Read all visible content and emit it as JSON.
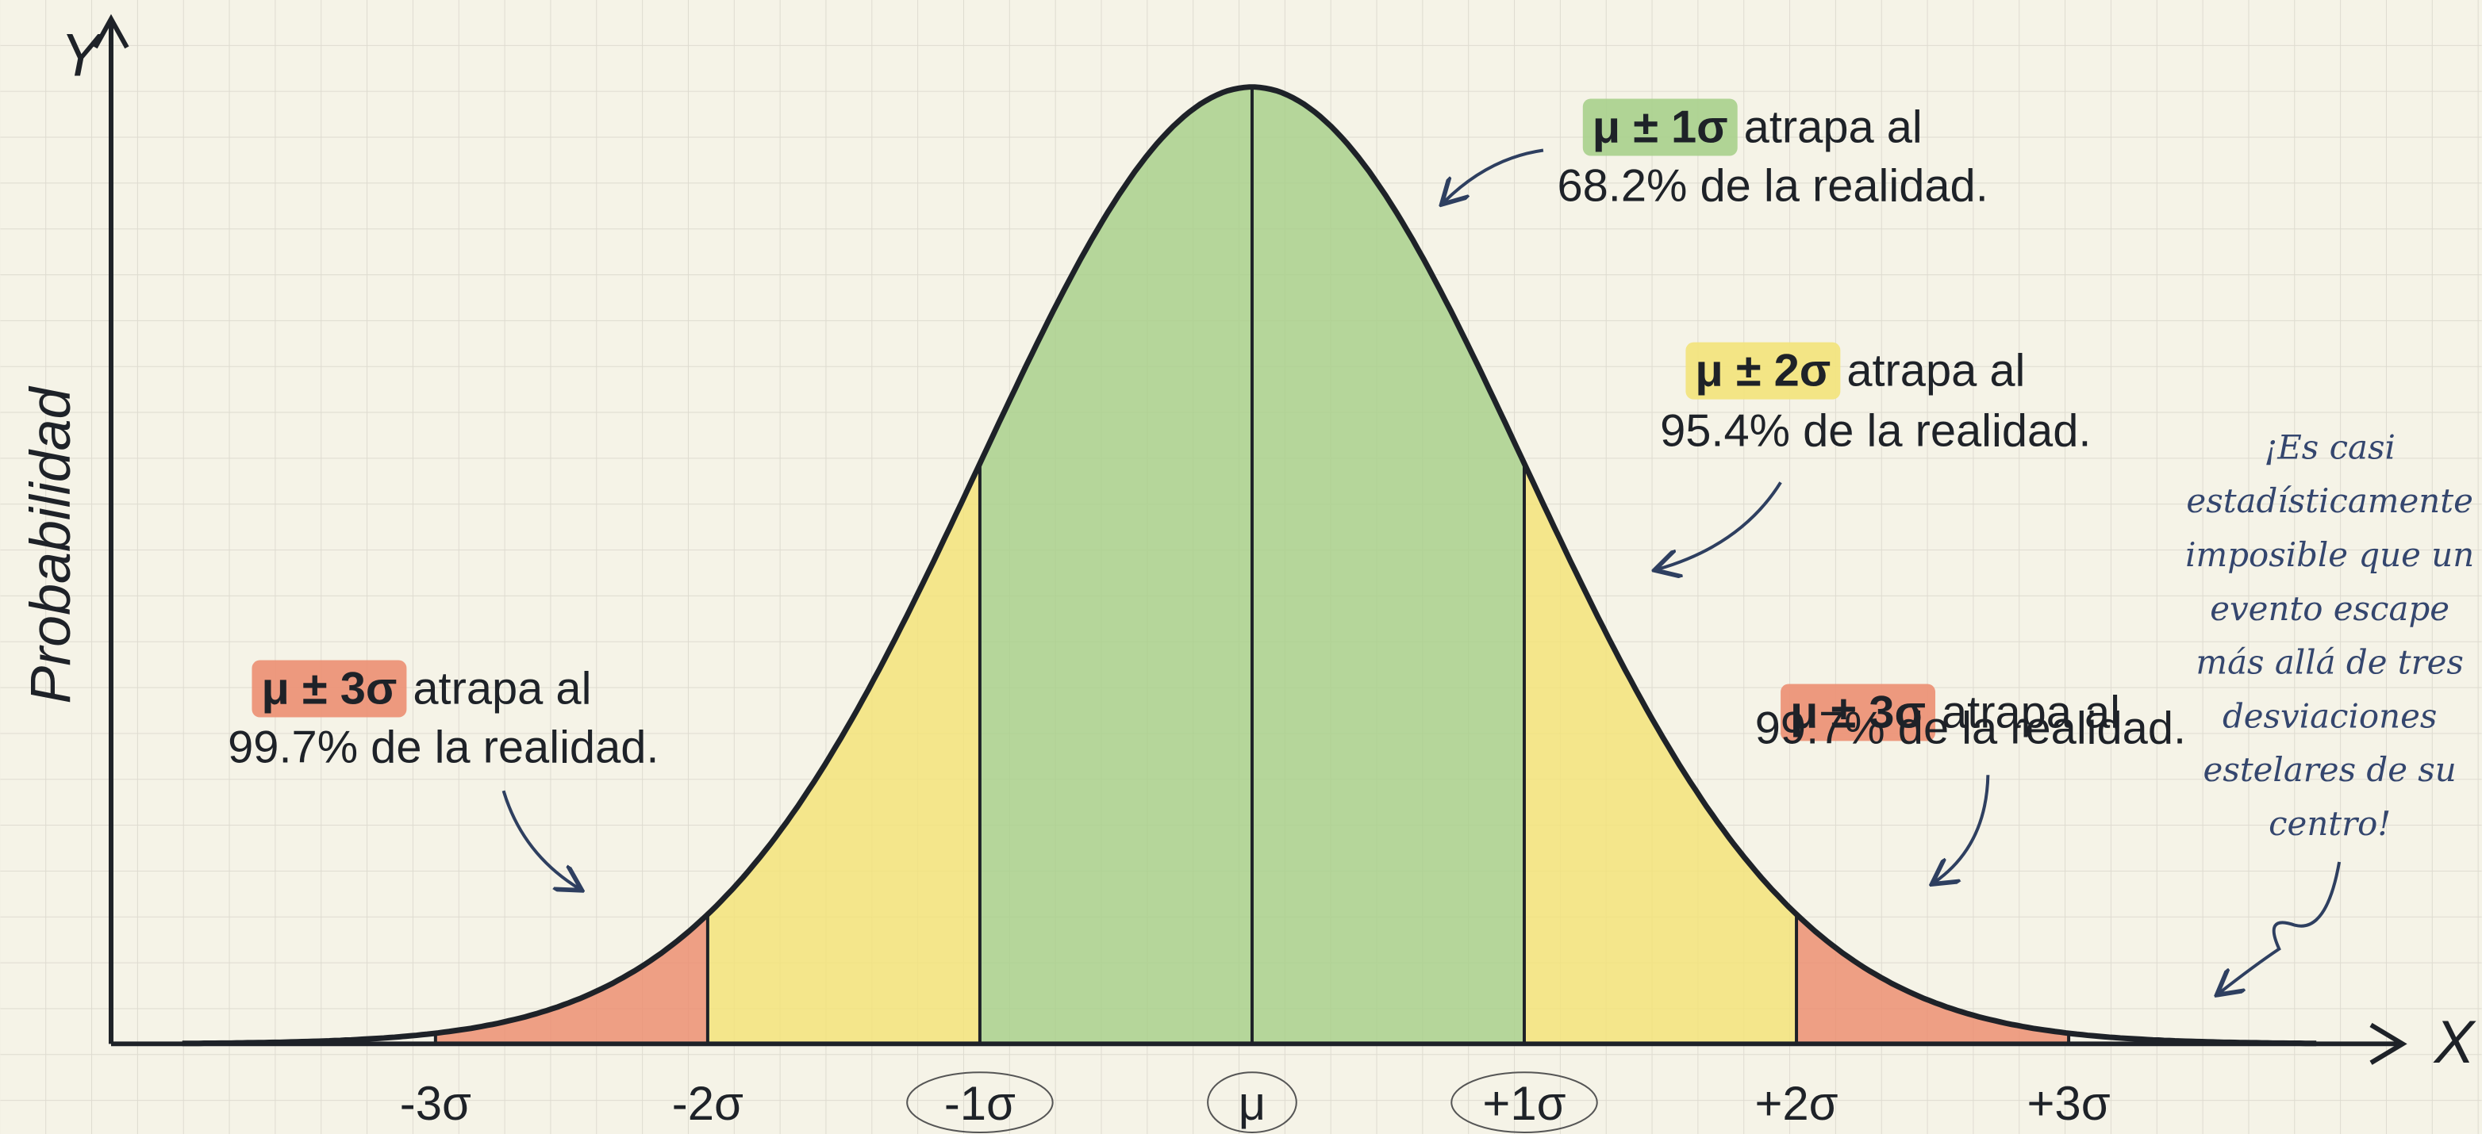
{
  "axes": {
    "y_label": "Y",
    "x_label": "X",
    "y_title": "Probabilidad"
  },
  "ticks": [
    "-3σ",
    "-2σ",
    "-1σ",
    "μ",
    "+1σ",
    "+2σ",
    "+3σ"
  ],
  "annotations": [
    {
      "highlight": "μ ± 1σ",
      "text": "atrapa al",
      "line2": "68.2% de la realidad."
    },
    {
      "highlight": "μ ± 2σ",
      "text": "atrapa al",
      "line2": "95.4% de la realidad."
    },
    {
      "highlight": "μ ± 3σ",
      "text": "atrapa al",
      "line2": "99.7% de la realidad."
    },
    {
      "highlight": "μ ± 3σ",
      "text": "atrapa al",
      "line2": "99.7% de la realidad."
    }
  ],
  "note": [
    "¡Es casi",
    "estadísticamente",
    "imposible que un",
    "evento escape",
    "más allá de tres",
    "desviaciones",
    "estelares de su",
    "centro!"
  ]
}
